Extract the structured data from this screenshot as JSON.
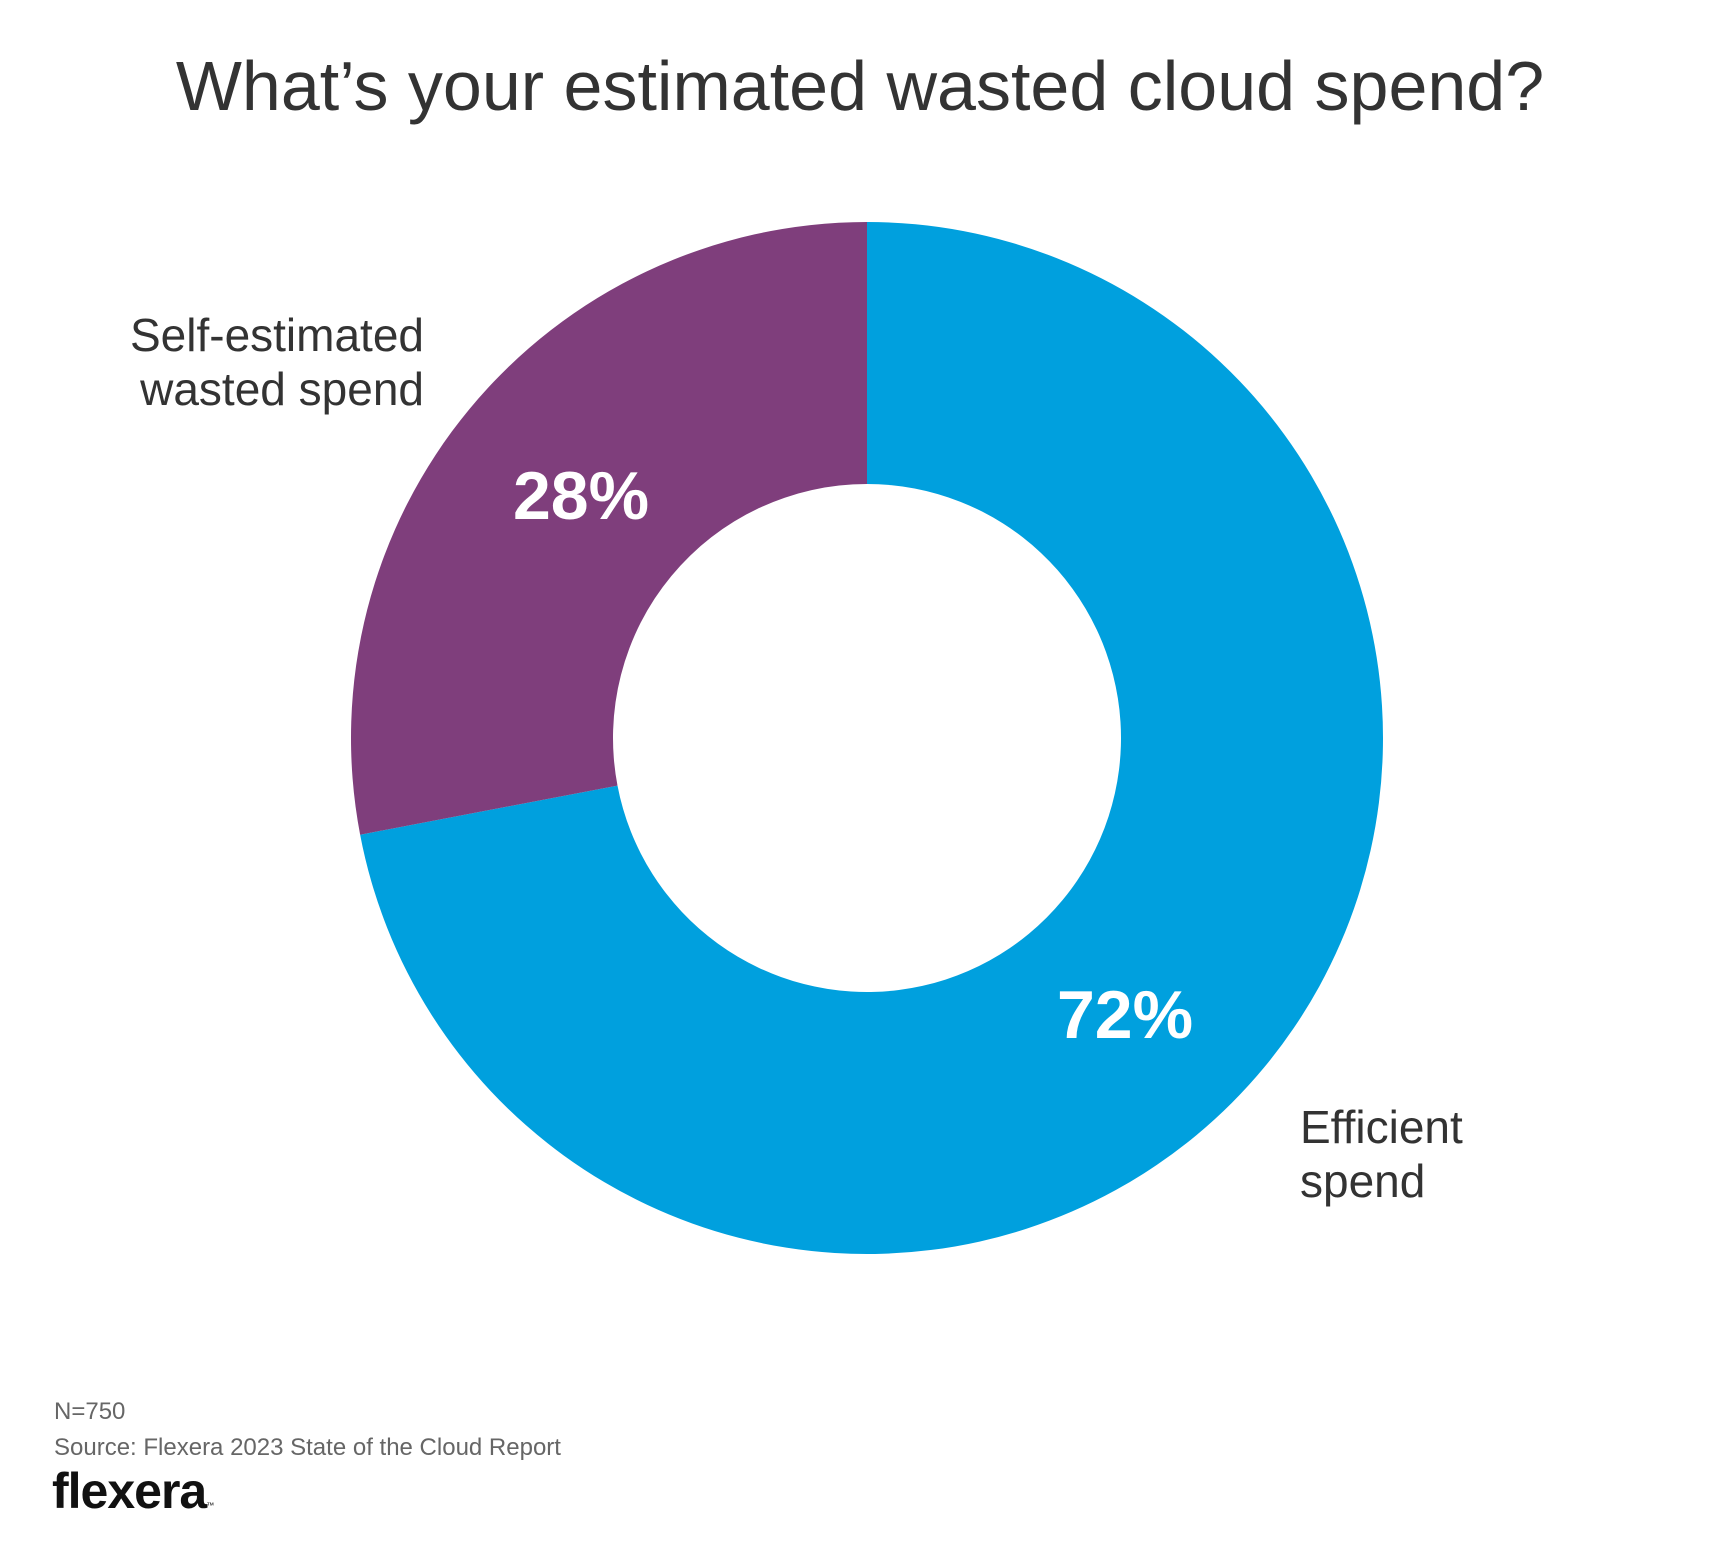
{
  "chart_data": {
    "type": "pie",
    "title": "What’s your estimated wasted cloud spend?",
    "donut": true,
    "categories": [
      "Self-estimated wasted spend",
      "Efficient spend"
    ],
    "values": [
      28,
      72
    ],
    "value_labels": [
      "28%",
      "72%"
    ],
    "label_lines": [
      [
        "Self-estimated",
        "wasted spend"
      ],
      [
        "Efficient",
        "spend"
      ]
    ],
    "colors": [
      "#7f3e7c",
      "#00a0de"
    ],
    "start": "12 o'clock, clockwise, efficient first"
  },
  "footer": {
    "n": "N=750",
    "source": "Source: Flexera 2023 State of the Cloud Report"
  },
  "logo": {
    "text": "flexera",
    "tm": "™"
  }
}
